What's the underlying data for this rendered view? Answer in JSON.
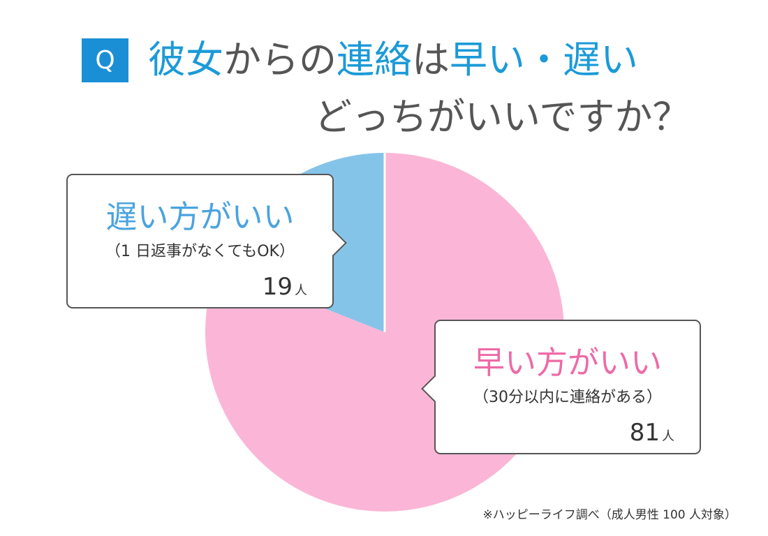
{
  "header": {
    "badge": "Q",
    "line1_parts": [
      "彼女",
      "からの",
      "連絡",
      "は",
      "早い・遅い"
    ],
    "line2": "どっちがいいですか？"
  },
  "chart_data": {
    "type": "pie",
    "slices": [
      {
        "label": "遅い方がいい",
        "note": "（1 日返事がなくてもOK）",
        "value": 19,
        "unit": "人",
        "color": "#85c4e9"
      },
      {
        "label": "早い方がいい",
        "note": "（30分以内に連絡がある）",
        "value": 81,
        "unit": "人",
        "color": "#fbb6d7"
      }
    ]
  },
  "footnote": "※ハッピーライフ調べ（成人男性 100 人対象）",
  "colors": {
    "accent_blue": "#1b8fd6",
    "late_text": "#4aa3e0",
    "fast_text": "#ee6aa7",
    "border": "#555555"
  }
}
